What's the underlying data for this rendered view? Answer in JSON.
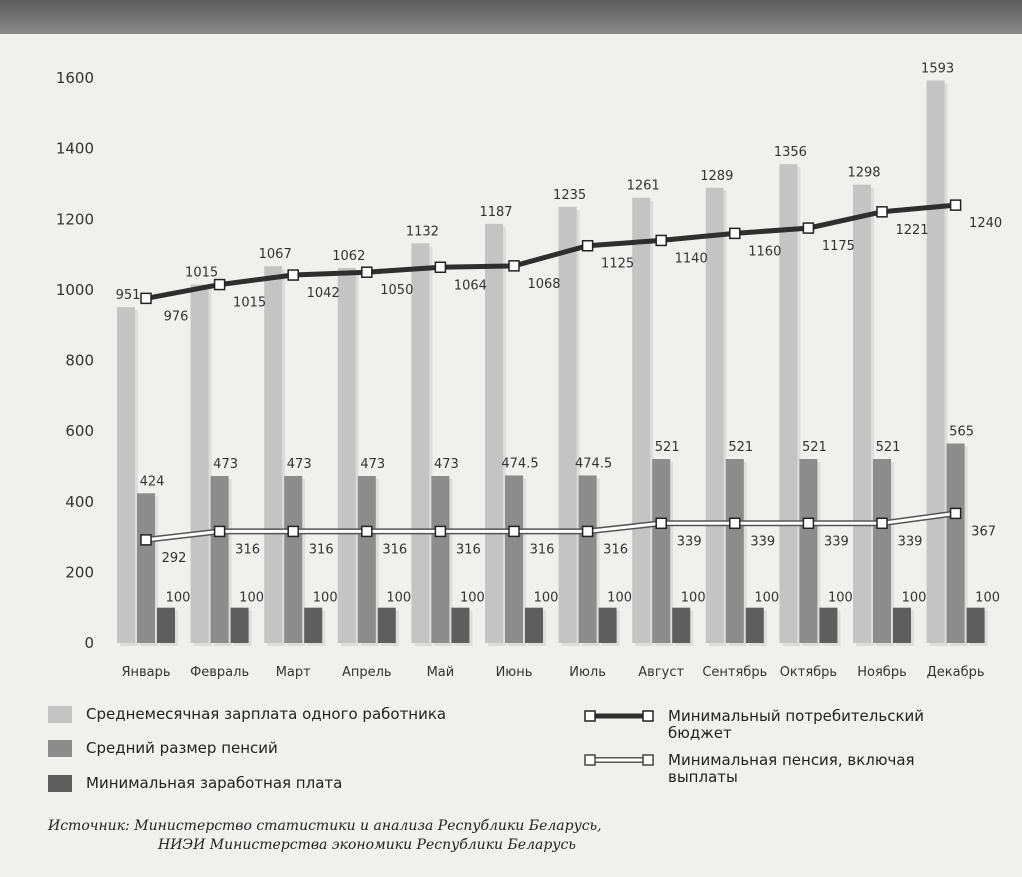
{
  "legend": {
    "salary": "Среднемесячная зарплата одного работника",
    "pension": "Средний размер пенсий",
    "min_wage": "Минимальная заработная плата",
    "budget": "Минимальный потребительский бюджет",
    "min_pension": "Минимальная пенсия, включая выплаты"
  },
  "source": {
    "prefix": "Источник:",
    "line1": "Министерство статистики и анализа Республики Беларусь,",
    "line2": "НИЭИ Министерства экономики Республики Беларусь"
  },
  "colors": {
    "salary": "#c4c4c4",
    "pension": "#8c8c8c",
    "min_wage": "#5e5e5e",
    "budget_line": "#2e2e2e",
    "min_pension_line": "#ffffff"
  },
  "chart_data": {
    "type": "bar",
    "categories": [
      "Январь",
      "Февраль",
      "Март",
      "Апрель",
      "Май",
      "Июнь",
      "Июль",
      "Август",
      "Сентябрь",
      "Октябрь",
      "Ноябрь",
      "Декабрь"
    ],
    "yticks": [
      0,
      200,
      400,
      600,
      800,
      1000,
      1200,
      1400,
      1600
    ],
    "ylim": [
      0,
      1600
    ],
    "grid": false,
    "legend_position": "bottom",
    "series": [
      {
        "key": "salary",
        "type": "bar",
        "values": [
          951,
          1015,
          1067,
          1062,
          1132,
          1187,
          1235,
          1261,
          1289,
          1356,
          1298,
          1593
        ],
        "labels": [
          "951",
          "1015",
          "1067",
          "1062",
          "1132",
          "1187",
          "1235",
          "1261",
          "1289",
          "1356",
          "1298",
          "1593"
        ]
      },
      {
        "key": "pension",
        "type": "bar",
        "values": [
          424,
          473,
          473,
          473,
          473,
          474.5,
          474.5,
          521,
          521,
          521,
          521,
          565
        ],
        "labels": [
          "424",
          "473",
          "473",
          "473",
          "473",
          "474.5",
          "474.5",
          "521",
          "521",
          "521",
          "521",
          "565"
        ]
      },
      {
        "key": "min_wage",
        "type": "bar",
        "values": [
          100,
          100,
          100,
          100,
          100,
          100,
          100,
          100,
          100,
          100,
          100,
          100
        ],
        "labels": [
          "100",
          "100",
          "100",
          "100",
          "100",
          "100",
          "100",
          "100",
          "100",
          "100",
          "100",
          "100"
        ]
      },
      {
        "key": "budget",
        "type": "line",
        "values": [
          976,
          1015,
          1042,
          1050,
          1064,
          1068,
          1125,
          1140,
          1160,
          1175,
          1221,
          1240
        ],
        "labels": [
          "976",
          "1015",
          "1042",
          "1050",
          "1064",
          "1068",
          "1125",
          "1140",
          "1160",
          "1175",
          "1221",
          "1240"
        ]
      },
      {
        "key": "min_pension",
        "type": "line",
        "values": [
          292,
          316,
          316,
          316,
          316,
          316,
          316,
          339,
          339,
          339,
          339,
          367
        ],
        "labels": [
          "292",
          "316",
          "316",
          "316",
          "316",
          "316",
          "316",
          "339",
          "339",
          "339",
          "339",
          "367"
        ]
      }
    ]
  }
}
